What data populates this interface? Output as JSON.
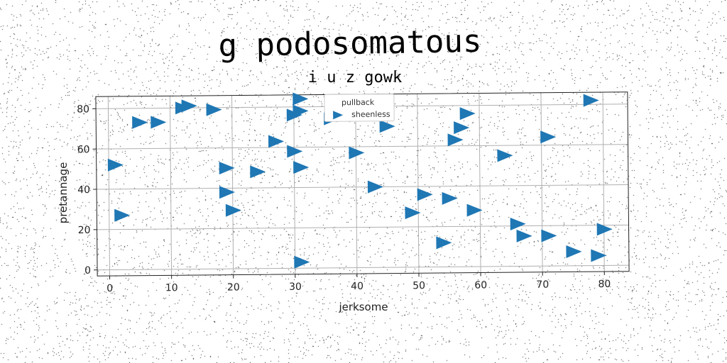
{
  "chart_data": {
    "type": "scatter",
    "title": "g podosomatous",
    "subtitle": "i u z gowk",
    "xlabel": "jerksome",
    "ylabel": "pretannage",
    "xlim": [
      -2,
      84
    ],
    "ylim": [
      -3,
      86
    ],
    "x_ticks": [
      "0",
      "10",
      "20",
      "30",
      "40",
      "50",
      "60",
      "70",
      "80"
    ],
    "y_ticks": [
      "0",
      "20",
      "40",
      "60",
      "80"
    ],
    "grid": true,
    "legend": {
      "placement": "top-center",
      "entries": [
        "pullback",
        "sheenless"
      ]
    },
    "marker": "triangle-right",
    "colors": {
      "series": "#1f77b4"
    },
    "series": [
      {
        "name": "sheenless",
        "points": [
          [
            1,
            52
          ],
          [
            2,
            27
          ],
          [
            5,
            73
          ],
          [
            8,
            73
          ],
          [
            12,
            80
          ],
          [
            13,
            81
          ],
          [
            17,
            79
          ],
          [
            19,
            50
          ],
          [
            19,
            38
          ],
          [
            20,
            29
          ],
          [
            24,
            48
          ],
          [
            27,
            63
          ],
          [
            30,
            58
          ],
          [
            30,
            76
          ],
          [
            31,
            84
          ],
          [
            31,
            78
          ],
          [
            31,
            50
          ],
          [
            31,
            3
          ],
          [
            36,
            74
          ],
          [
            40,
            57
          ],
          [
            43,
            40
          ],
          [
            45,
            70
          ],
          [
            49,
            27
          ],
          [
            51,
            36
          ],
          [
            54,
            12
          ],
          [
            55,
            34
          ],
          [
            56,
            63
          ],
          [
            57,
            69
          ],
          [
            58,
            76
          ],
          [
            59,
            28
          ],
          [
            64,
            55
          ],
          [
            66,
            21
          ],
          [
            67,
            15
          ],
          [
            71,
            64
          ],
          [
            71,
            15
          ],
          [
            75,
            7
          ],
          [
            78,
            82
          ],
          [
            79,
            5
          ],
          [
            80,
            18
          ]
        ]
      }
    ]
  }
}
